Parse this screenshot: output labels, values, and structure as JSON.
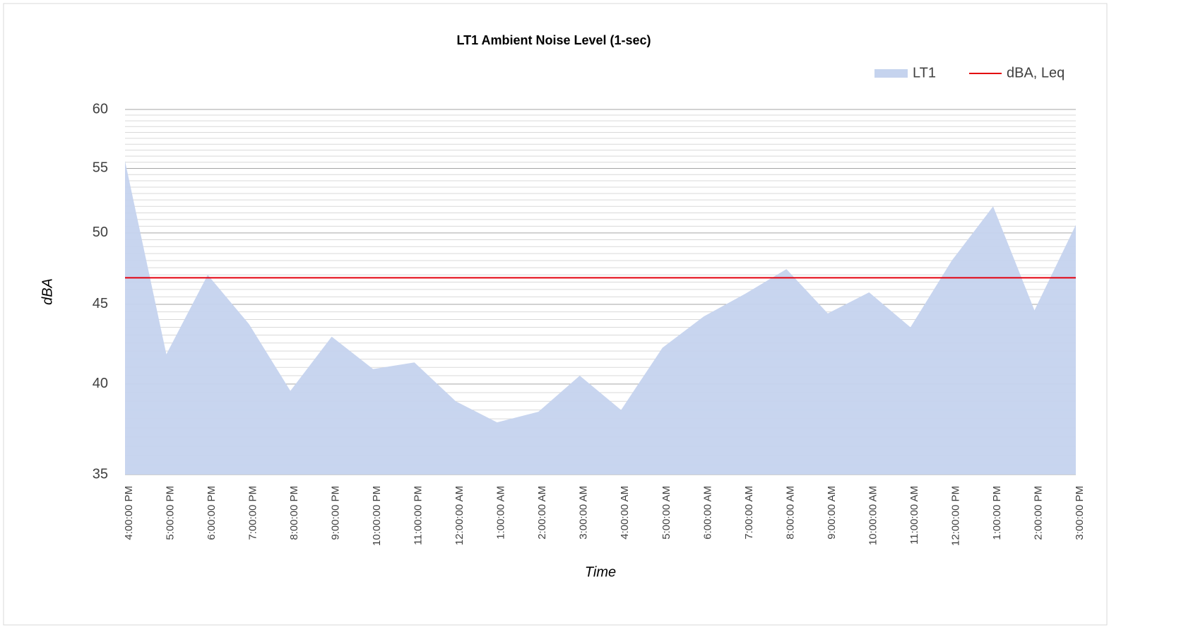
{
  "chart_data": {
    "type": "area",
    "title": "LT1 Ambient Noise Level (1-sec)",
    "x_label": "Time",
    "y_label": "dBA",
    "categories": [
      "4:00:00 PM",
      "5:00:00 PM",
      "6:00:00 PM",
      "7:00:00 PM",
      "8:00:00 PM",
      "9:00:00 PM",
      "10:00:00 PM",
      "11:00:00 PM",
      "12:00:00 AM",
      "1:00:00 AM",
      "2:00:00 AM",
      "3:00:00 AM",
      "4:00:00 AM",
      "5:00:00 AM",
      "6:00:00 AM",
      "7:00:00 AM",
      "8:00:00 AM",
      "9:00:00 AM",
      "10:00:00 AM",
      "11:00:00 AM",
      "12:00:00 PM",
      "1:00:00 PM",
      "2:00:00 PM",
      "3:00:00 PM"
    ],
    "series": [
      {
        "name": "LT1",
        "color": "#c5d3ee",
        "values": [
          55.6,
          41.8,
          47.0,
          43.7,
          39.6,
          42.9,
          40.9,
          41.3,
          39.0,
          37.8,
          38.4,
          40.5,
          38.5,
          42.2,
          44.2,
          45.7,
          47.4,
          44.4,
          45.8,
          43.5,
          48.0,
          52.0,
          44.6,
          50.6
        ]
      },
      {
        "name": "dBA, Leq",
        "color": "#e3000f",
        "value": 46.8
      }
    ],
    "ylog": true,
    "ylim": [
      35,
      60
    ],
    "yticks": [
      35,
      40,
      45,
      50,
      55,
      60
    ],
    "yminorticks": [
      35.5,
      36,
      36.5,
      37,
      37.5,
      38,
      38.5,
      39,
      39.5,
      40.5,
      41,
      41.5,
      42,
      42.5,
      43,
      43.5,
      44,
      44.5,
      45.5,
      46,
      46.5,
      47,
      47.5,
      48,
      48.5,
      49,
      49.5,
      50.5,
      51,
      51.5,
      52,
      52.5,
      53,
      53.5,
      54,
      54.5,
      55.5,
      56,
      56.5,
      57,
      57.5,
      58,
      58.5,
      59,
      59.5
    ],
    "grid": true,
    "legend": "top-right"
  }
}
